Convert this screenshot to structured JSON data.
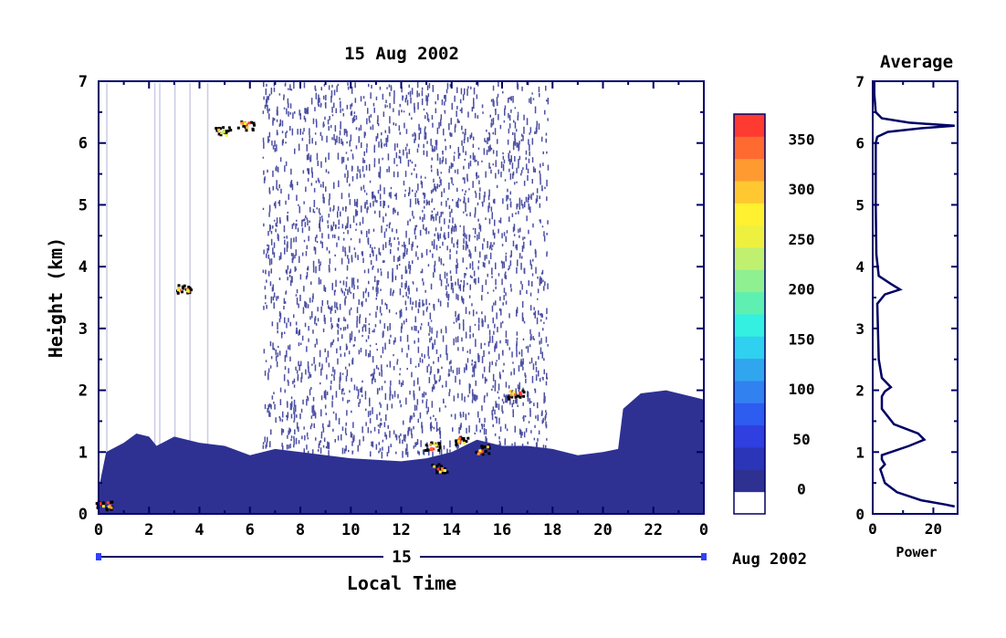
{
  "chart_data": [
    {
      "type": "heatmap",
      "title": "15 Aug 2002",
      "xlabel": "Local Time",
      "ylabel": "Height (km)",
      "x_ticks": [
        "0",
        "2",
        "4",
        "6",
        "8",
        "10",
        "12",
        "14",
        "16",
        "18",
        "20",
        "22",
        "0"
      ],
      "y_ticks": [
        "0",
        "1",
        "2",
        "3",
        "4",
        "5",
        "6",
        "7"
      ],
      "xlim": [
        0,
        24
      ],
      "ylim": [
        0,
        7
      ],
      "date_day_label": "15",
      "date_month_label": "Aug 2002",
      "colorbar": {
        "ticks": [
          "0",
          "50",
          "100",
          "150",
          "200",
          "250",
          "300",
          "350"
        ],
        "range": [
          -25,
          375
        ],
        "colors": [
          "#ffffff",
          "#2e3192",
          "#2b35b8",
          "#2f3fe0",
          "#2d5cf0",
          "#3181f0",
          "#2fa6ee",
          "#2fd0f0",
          "#33f0e0",
          "#5ef0b0",
          "#8ef090",
          "#bff070",
          "#eef040",
          "#fff030",
          "#ffc830",
          "#ff9a30",
          "#ff6a30",
          "#ff3a30"
        ]
      },
      "layers": {
        "boundary_layer_top_km": [
          {
            "time": 0.0,
            "height": 0.4
          },
          {
            "time": 0.3,
            "height": 1.0
          },
          {
            "time": 1.0,
            "height": 1.15
          },
          {
            "time": 1.5,
            "height": 1.3
          },
          {
            "time": 2.0,
            "height": 1.25
          },
          {
            "time": 2.3,
            "height": 1.1
          },
          {
            "time": 3.0,
            "height": 1.25
          },
          {
            "time": 4.0,
            "height": 1.15
          },
          {
            "time": 5.0,
            "height": 1.1
          },
          {
            "time": 6.0,
            "height": 0.95
          },
          {
            "time": 7.0,
            "height": 1.05
          },
          {
            "time": 8.0,
            "height": 1.0
          },
          {
            "time": 10.0,
            "height": 0.9
          },
          {
            "time": 12.0,
            "height": 0.85
          },
          {
            "time": 13.0,
            "height": 0.9
          },
          {
            "time": 14.0,
            "height": 1.0
          },
          {
            "time": 15.0,
            "height": 1.2
          },
          {
            "time": 16.0,
            "height": 1.1
          },
          {
            "time": 17.0,
            "height": 1.1
          },
          {
            "time": 18.0,
            "height": 1.05
          },
          {
            "time": 19.0,
            "height": 0.95
          },
          {
            "time": 20.0,
            "height": 1.0
          },
          {
            "time": 20.6,
            "height": 1.05
          },
          {
            "time": 20.8,
            "height": 1.7
          },
          {
            "time": 21.5,
            "height": 1.95
          },
          {
            "time": 22.5,
            "height": 2.0
          },
          {
            "time": 24.0,
            "height": 1.85
          }
        ],
        "noise_region_hours": [
          6.5,
          17.8
        ],
        "cloud_echoes": [
          {
            "time": 0.2,
            "height": 0.15,
            "value": 380
          },
          {
            "time": 3.3,
            "height": 3.65,
            "value": 350
          },
          {
            "time": 4.9,
            "height": 6.2,
            "value": 320
          },
          {
            "time": 5.8,
            "height": 6.3,
            "value": 380
          },
          {
            "time": 13.2,
            "height": 1.1,
            "value": 380
          },
          {
            "time": 14.4,
            "height": 1.2,
            "value": 380
          },
          {
            "time": 15.2,
            "height": 1.05,
            "value": 380
          },
          {
            "time": 13.5,
            "height": 0.75,
            "value": 360
          },
          {
            "time": 16.5,
            "height": 1.95,
            "value": 380
          }
        ]
      }
    },
    {
      "type": "line",
      "title": "Average",
      "xlabel": "Power",
      "x_ticks": [
        "0",
        "20"
      ],
      "y_ticks": [
        "0",
        "1",
        "2",
        "3",
        "4",
        "5",
        "6",
        "7"
      ],
      "xlim": [
        0,
        28
      ],
      "ylim": [
        0,
        7
      ],
      "series": [
        {
          "x": [
            27,
            24,
            16,
            8,
            4,
            3,
            2.5,
            4,
            3,
            3,
            6,
            12,
            17,
            15,
            7,
            3,
            3,
            4,
            6,
            3,
            2,
            1.5,
            4,
            9,
            6,
            2,
            1.2,
            1,
            1,
            1,
            1.5,
            5,
            16,
            27,
            12,
            3,
            1,
            0.5,
            0.5
          ],
          "y": [
            0.12,
            0.15,
            0.22,
            0.35,
            0.5,
            0.65,
            0.72,
            0.8,
            0.88,
            0.95,
            1.0,
            1.1,
            1.2,
            1.3,
            1.45,
            1.7,
            1.9,
            1.98,
            2.05,
            2.2,
            2.5,
            3.4,
            3.55,
            3.63,
            3.72,
            3.85,
            4.2,
            5.0,
            5.6,
            6.0,
            6.1,
            6.18,
            6.24,
            6.28,
            6.33,
            6.4,
            6.5,
            6.8,
            7.0
          ]
        }
      ]
    }
  ]
}
